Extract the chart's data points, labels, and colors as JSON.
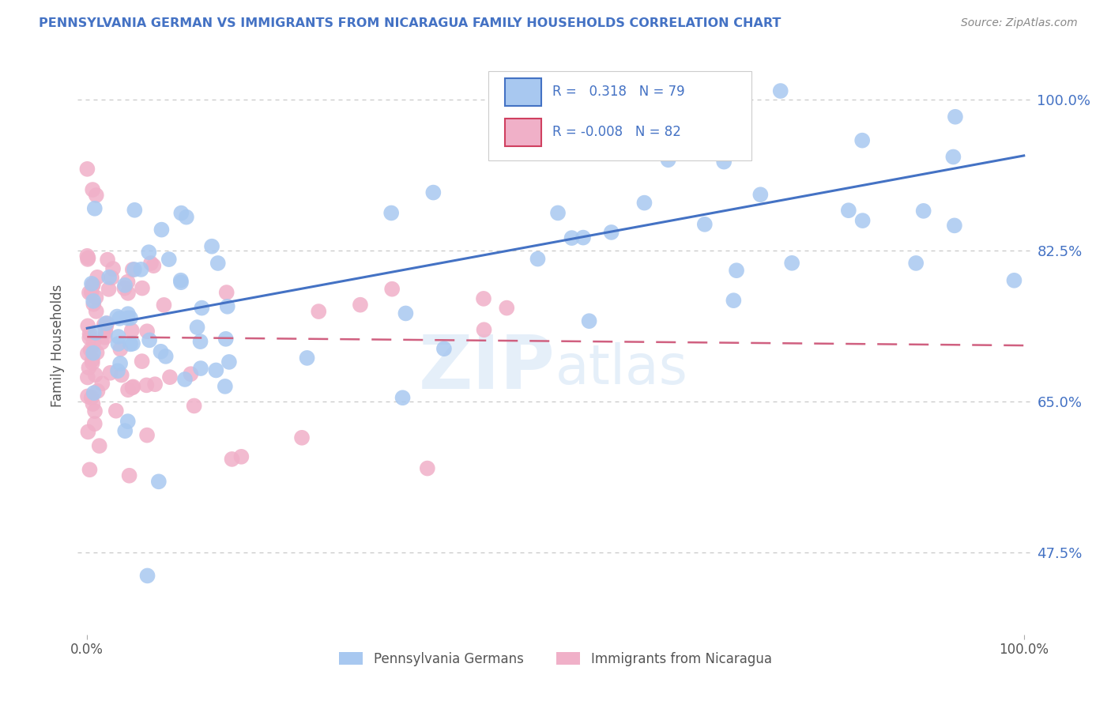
{
  "title": "PENNSYLVANIA GERMAN VS IMMIGRANTS FROM NICARAGUA FAMILY HOUSEHOLDS CORRELATION CHART",
  "source": "Source: ZipAtlas.com",
  "ylabel": "Family Households",
  "watermark": "ZIPatlas",
  "legend_blue_r": "0.318",
  "legend_blue_n": "79",
  "legend_pink_r": "-0.008",
  "legend_pink_n": "82",
  "legend_blue_label": "Pennsylvania Germans",
  "legend_pink_label": "Immigrants from Nicaragua",
  "ytick_labels": [
    "47.5%",
    "65.0%",
    "82.5%",
    "100.0%"
  ],
  "ytick_values": [
    0.475,
    0.65,
    0.825,
    1.0
  ],
  "blue_scatter_color": "#a8c8f0",
  "blue_line_color": "#4472c4",
  "pink_scatter_color": "#f0b0c8",
  "pink_line_color": "#d04060",
  "pink_line_dash": "#d06080",
  "background_color": "#ffffff",
  "grid_color": "#c8c8c8",
  "title_color": "#4472c4",
  "source_color": "#888888",
  "ylabel_color": "#555555",
  "right_tick_color": "#4472c4",
  "bottom_tick_color": "#555555",
  "blue_trend_x0": 0.0,
  "blue_trend_y0": 0.735,
  "blue_trend_x1": 1.0,
  "blue_trend_y1": 0.935,
  "pink_trend_x0": 0.0,
  "pink_trend_y0": 0.725,
  "pink_trend_x1": 1.0,
  "pink_trend_y1": 0.715,
  "ymin": 0.38,
  "ymax": 1.05,
  "xmin": -0.01,
  "xmax": 1.01
}
